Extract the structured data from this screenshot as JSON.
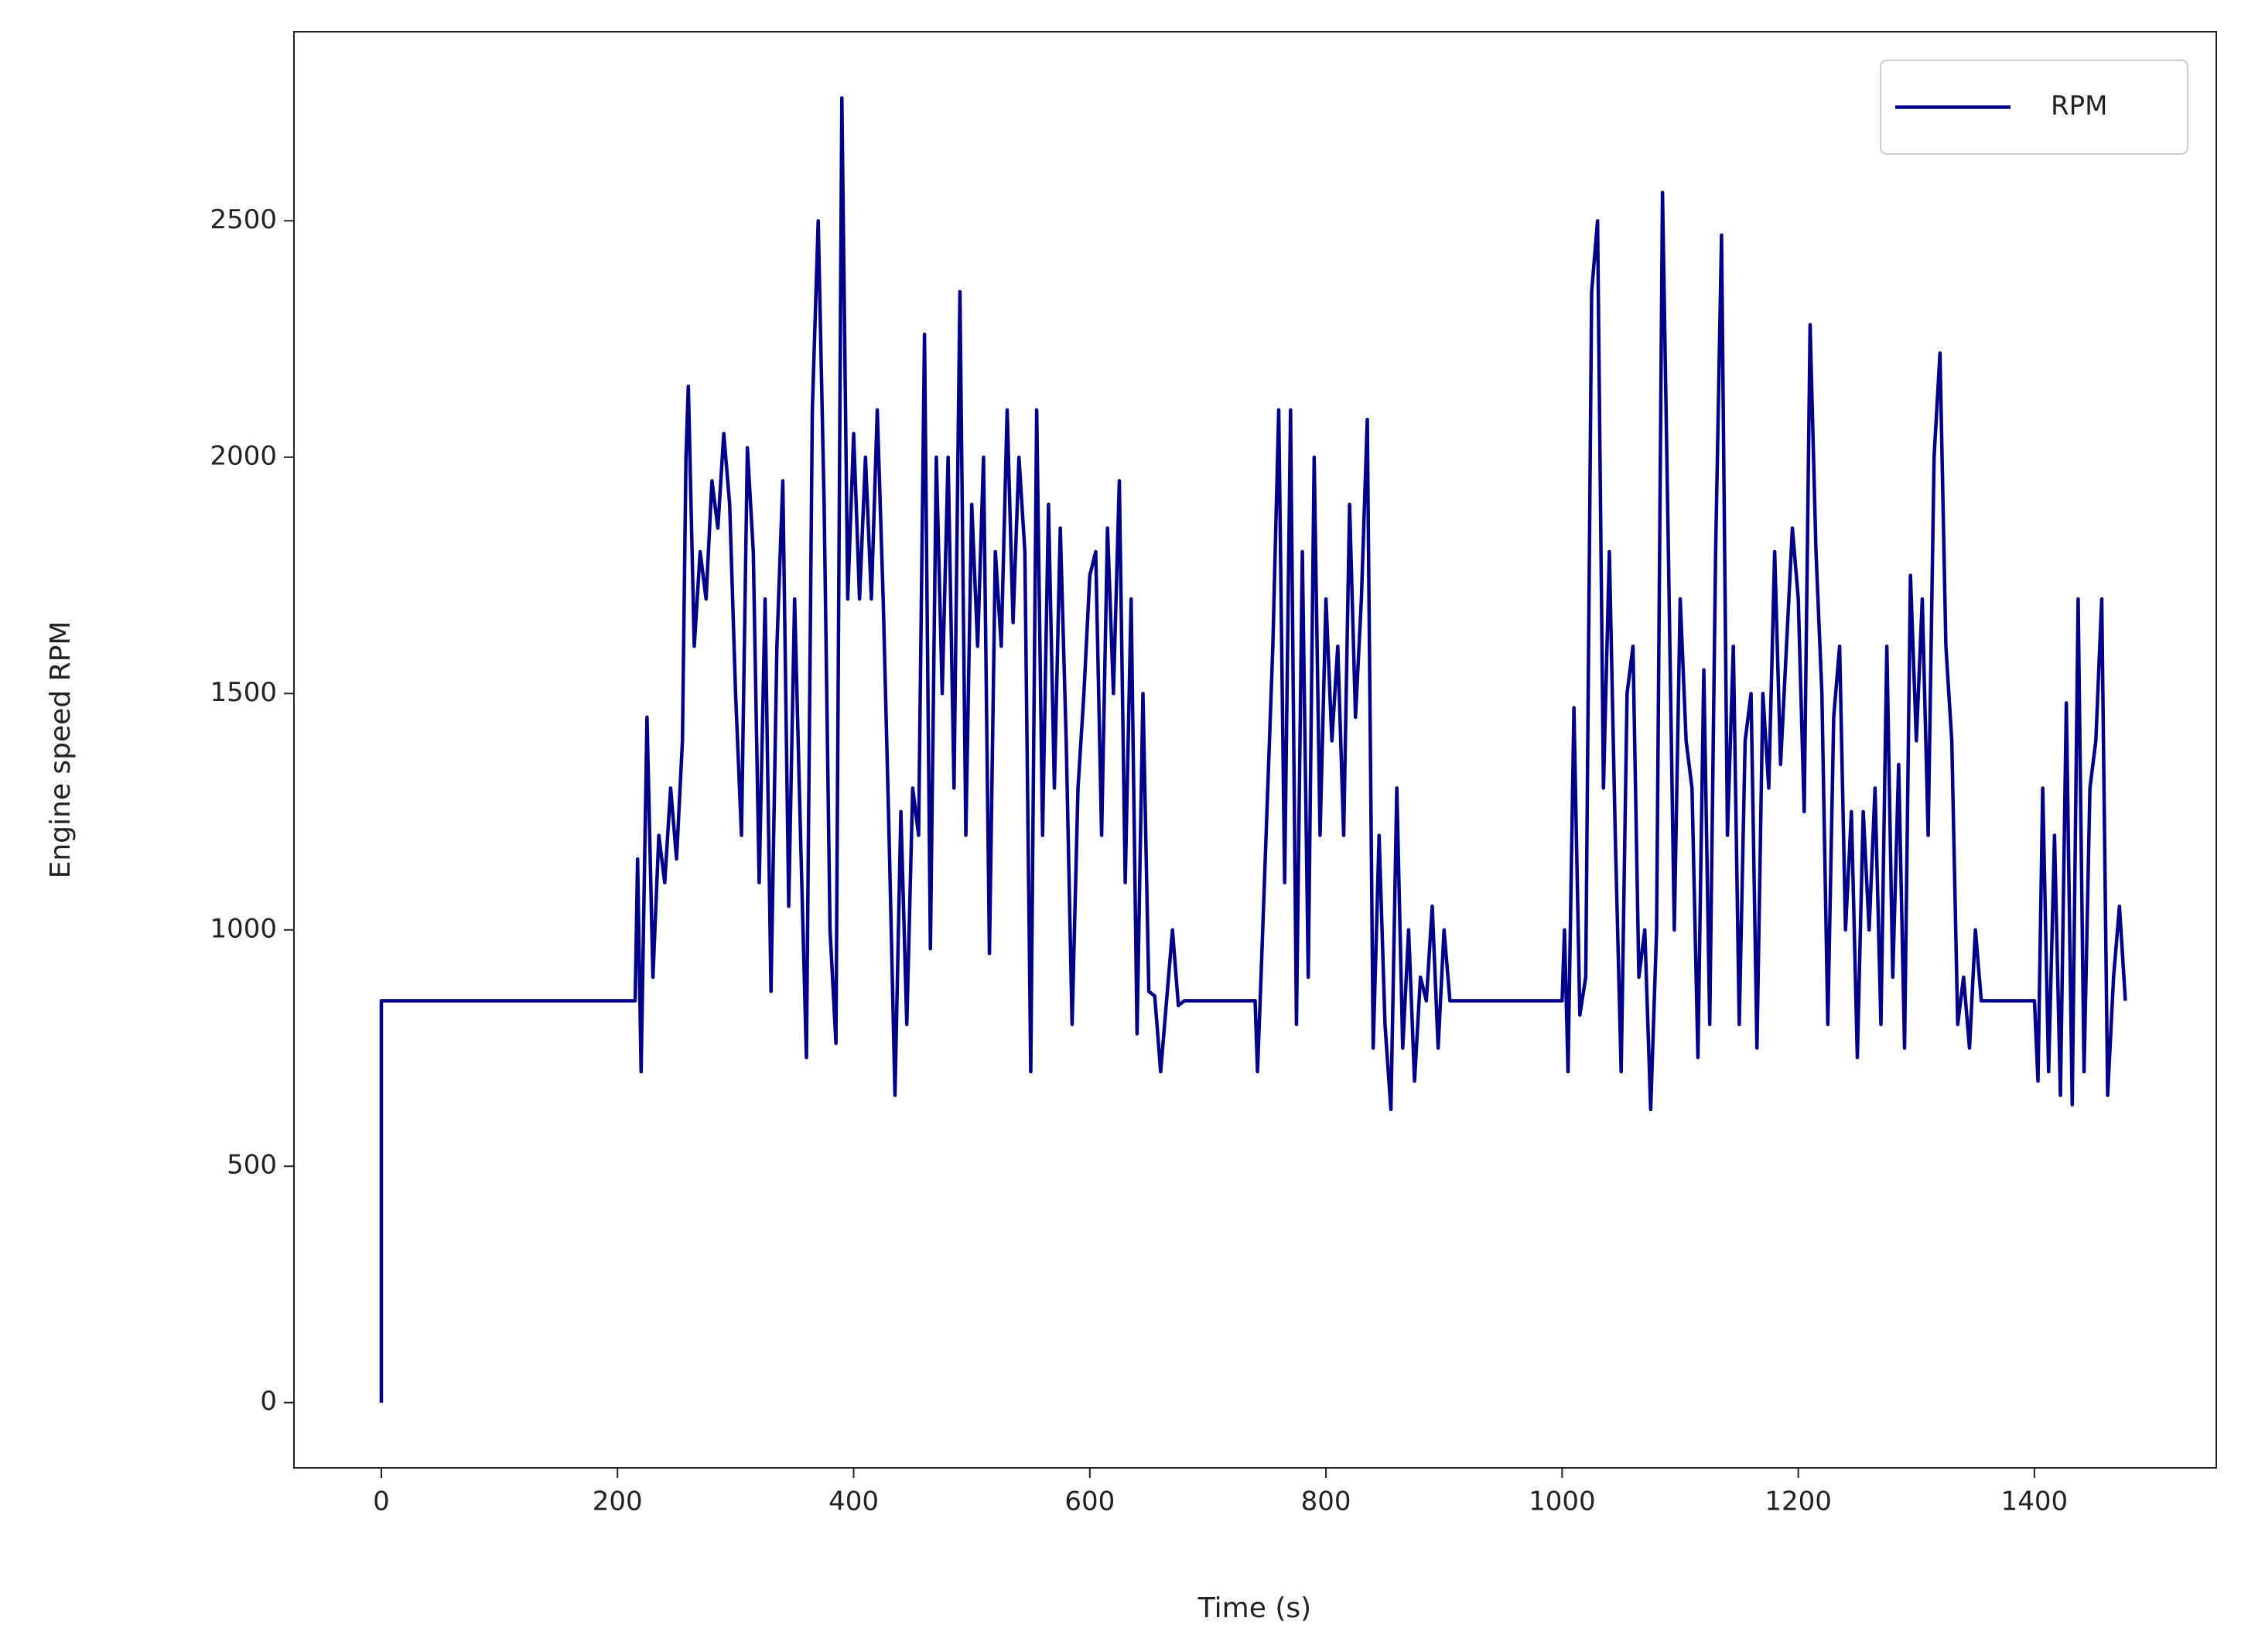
{
  "chart_data": {
    "type": "line",
    "xlabel": "Time (s)",
    "ylabel": "Engine speed RPM",
    "x": [
      0,
      0,
      215,
      217,
      220,
      225,
      230,
      235,
      240,
      245,
      250,
      255,
      258,
      260,
      265,
      270,
      275,
      280,
      285,
      290,
      295,
      300,
      305,
      310,
      315,
      320,
      325,
      330,
      335,
      340,
      345,
      350,
      355,
      360,
      365,
      370,
      375,
      380,
      385,
      390,
      395,
      400,
      405,
      410,
      415,
      420,
      425,
      430,
      435,
      440,
      445,
      450,
      455,
      460,
      465,
      470,
      475,
      480,
      485,
      490,
      495,
      500,
      505,
      510,
      515,
      520,
      525,
      530,
      535,
      540,
      545,
      550,
      555,
      560,
      565,
      570,
      575,
      580,
      585,
      590,
      595,
      600,
      605,
      610,
      615,
      620,
      625,
      630,
      635,
      640,
      645,
      650,
      655,
      660,
      665,
      670,
      675,
      680,
      740,
      742,
      745,
      750,
      755,
      760,
      765,
      770,
      775,
      780,
      785,
      790,
      795,
      800,
      805,
      810,
      815,
      820,
      825,
      830,
      835,
      840,
      845,
      850,
      855,
      860,
      865,
      870,
      875,
      880,
      885,
      890,
      895,
      900,
      905,
      1000,
      1002,
      1005,
      1010,
      1015,
      1020,
      1025,
      1030,
      1035,
      1040,
      1045,
      1050,
      1055,
      1060,
      1065,
      1070,
      1075,
      1080,
      1085,
      1090,
      1095,
      1100,
      1105,
      1110,
      1115,
      1120,
      1125,
      1130,
      1135,
      1140,
      1145,
      1150,
      1155,
      1160,
      1165,
      1170,
      1175,
      1180,
      1185,
      1190,
      1195,
      1200,
      1205,
      1210,
      1215,
      1220,
      1225,
      1230,
      1235,
      1240,
      1245,
      1250,
      1255,
      1260,
      1265,
      1270,
      1275,
      1280,
      1285,
      1290,
      1295,
      1300,
      1305,
      1310,
      1315,
      1320,
      1325,
      1330,
      1335,
      1340,
      1345,
      1350,
      1355,
      1400,
      1403,
      1407,
      1412,
      1417,
      1422,
      1427,
      1432,
      1437,
      1442,
      1447,
      1452,
      1457,
      1462,
      1467,
      1472,
      1477
    ],
    "series": [
      {
        "name": "RPM",
        "color": "#00008b",
        "values": [
          0,
          850,
          850,
          1150,
          700,
          1450,
          900,
          1200,
          1100,
          1300,
          1150,
          1400,
          2000,
          2150,
          1600,
          1800,
          1700,
          1950,
          1850,
          2050,
          1900,
          1500,
          1200,
          2020,
          1800,
          1100,
          1700,
          870,
          1600,
          1950,
          1050,
          1700,
          1200,
          730,
          2100,
          2500,
          1900,
          1000,
          760,
          2760,
          1700,
          2050,
          1700,
          2000,
          1700,
          2100,
          1700,
          1200,
          650,
          1250,
          800,
          1300,
          1200,
          2260,
          960,
          2000,
          1500,
          2000,
          1300,
          2350,
          1200,
          1900,
          1600,
          2000,
          950,
          1800,
          1600,
          2100,
          1650,
          2000,
          1800,
          700,
          2100,
          1200,
          1900,
          1300,
          1850,
          1400,
          800,
          1300,
          1500,
          1750,
          1800,
          1200,
          1850,
          1500,
          1950,
          1100,
          1700,
          780,
          1500,
          870,
          860,
          700,
          850,
          1000,
          840,
          850,
          850,
          700,
          900,
          1250,
          1600,
          2100,
          1100,
          2100,
          800,
          1800,
          900,
          2000,
          1200,
          1700,
          1400,
          1600,
          1200,
          1900,
          1450,
          1700,
          2080,
          750,
          1200,
          800,
          620,
          1300,
          750,
          1000,
          680,
          900,
          850,
          1050,
          750,
          1000,
          850,
          850,
          1000,
          700,
          1470,
          820,
          900,
          2350,
          2500,
          1300,
          1800,
          1200,
          700,
          1500,
          1600,
          900,
          1000,
          620,
          1000,
          2560,
          1800,
          1000,
          1700,
          1400,
          1300,
          730,
          1550,
          800,
          1800,
          2470,
          1200,
          1600,
          800,
          1400,
          1500,
          750,
          1500,
          1300,
          1800,
          1350,
          1600,
          1850,
          1700,
          1250,
          2280,
          1800,
          1500,
          800,
          1450,
          1600,
          1000,
          1250,
          730,
          1250,
          1000,
          1300,
          800,
          1600,
          900,
          1350,
          750,
          1750,
          1400,
          1700,
          1200,
          2000,
          2220,
          1600,
          1400,
          800,
          900,
          750,
          1000,
          850,
          850,
          680,
          1300,
          700,
          1200,
          650,
          1480,
          630,
          1700,
          700,
          1300,
          1400,
          1700,
          650,
          900,
          1050,
          850
        ]
      }
    ],
    "xlim": [
      -74,
      1554
    ],
    "ylim": [
      -138,
      2900
    ],
    "xticks": [
      0,
      200,
      400,
      600,
      800,
      1000,
      1200,
      1400
    ],
    "yticks": [
      0,
      500,
      1000,
      1500,
      2000,
      2500
    ],
    "legend": "upper right"
  }
}
